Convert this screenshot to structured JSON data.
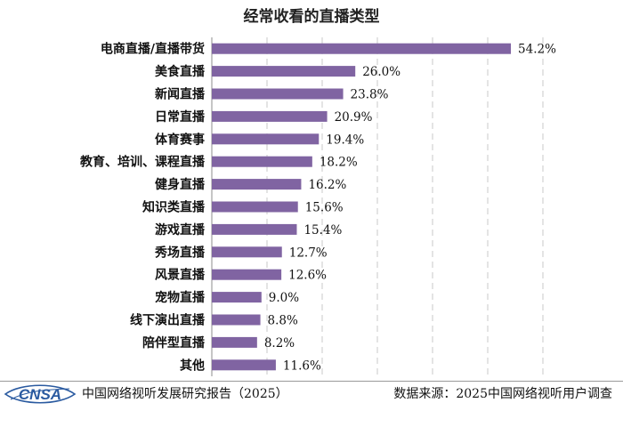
{
  "chart_data": {
    "type": "bar",
    "orientation": "horizontal",
    "title": "经常收看的直播类型",
    "xlabel": "",
    "ylabel": "",
    "xlim": [
      0,
      60
    ],
    "grid": true,
    "bar_color": "#8064A2",
    "categories": [
      "电商直播/直播带货",
      "美食直播",
      "新闻直播",
      "日常直播",
      "体育赛事",
      "教育、培训、课程直播",
      "健身直播",
      "知识类直播",
      "游戏直播",
      "秀场直播",
      "风景直播",
      "宠物直播",
      "线下演出直播",
      "陪伴型直播",
      "其他"
    ],
    "values": [
      54.2,
      26.0,
      23.8,
      20.9,
      19.4,
      18.2,
      16.2,
      15.6,
      15.4,
      12.7,
      12.6,
      9.0,
      8.8,
      8.2,
      11.6
    ],
    "value_labels": [
      "54.2%",
      "26.0%",
      "23.8%",
      "20.9%",
      "19.4%",
      "18.2%",
      "16.2%",
      "15.6%",
      "15.4%",
      "12.7%",
      "12.6%",
      "9.0%",
      "8.8%",
      "8.2%",
      "11.6%"
    ]
  },
  "footer": {
    "logo_text": "CNSA",
    "logo_color": "#2a5aa0",
    "left": "中国网络视听发展研究报告（2025）",
    "right": "数据来源：2025中国网络视听用户调查"
  }
}
